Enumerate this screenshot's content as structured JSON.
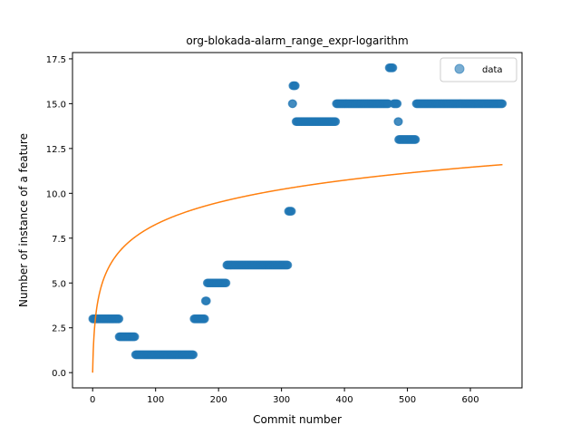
{
  "chart_data": {
    "type": "scatter",
    "title": "org-blokada-alarm_range_expr-logarithm",
    "xlabel": "Commit number",
    "ylabel": "Number of instance of a feature",
    "xlim": [
      -32,
      682
    ],
    "ylim": [
      -0.85,
      17.85
    ],
    "x_ticks": [
      0,
      100,
      200,
      300,
      400,
      500,
      600
    ],
    "y_ticks": [
      0.0,
      2.5,
      5.0,
      7.5,
      10.0,
      12.5,
      15.0,
      17.5
    ],
    "x_tick_labels": [
      "0",
      "100",
      "200",
      "300",
      "400",
      "500",
      "600"
    ],
    "y_tick_labels": [
      "0.0",
      "2.5",
      "5.0",
      "7.5",
      "10.0",
      "12.5",
      "15.0",
      "17.5"
    ],
    "grid": false,
    "legend_position": "top-right",
    "series": [
      {
        "name": "data",
        "kind": "scatter",
        "color": "#1f77b4",
        "segments": [
          {
            "x_start": 0,
            "x_end": 42,
            "y": 3
          },
          {
            "x_start": 42,
            "x_end": 67,
            "y": 2
          },
          {
            "x_start": 68,
            "x_end": 160,
            "y": 1
          },
          {
            "x_start": 161,
            "x_end": 178,
            "y": 3
          },
          {
            "x_start": 179,
            "x_end": 181,
            "y": 4
          },
          {
            "x_start": 182,
            "x_end": 212,
            "y": 5
          },
          {
            "x_start": 213,
            "x_end": 310,
            "y": 6
          },
          {
            "x_start": 311,
            "x_end": 316,
            "y": 9
          },
          {
            "x_start": 317,
            "x_end": 318,
            "y": 15
          },
          {
            "x_start": 318,
            "x_end": 322,
            "y": 16
          },
          {
            "x_start": 323,
            "x_end": 386,
            "y": 14
          },
          {
            "x_start": 387,
            "x_end": 470,
            "y": 15
          },
          {
            "x_start": 471,
            "x_end": 477,
            "y": 17
          },
          {
            "x_start": 478,
            "x_end": 484,
            "y": 15
          },
          {
            "x_start": 485,
            "x_end": 486,
            "y": 14
          },
          {
            "x_start": 486,
            "x_end": 513,
            "y": 13
          },
          {
            "x_start": 514,
            "x_end": 651,
            "y": 15
          }
        ]
      },
      {
        "kind": "line",
        "color": "#ff7f0e",
        "function": "logarithm",
        "x_range": [
          0,
          651
        ],
        "samples": [
          {
            "x": 0,
            "y": 0.0
          },
          {
            "x": 5,
            "y": 3.1
          },
          {
            "x": 20,
            "y": 5.2
          },
          {
            "x": 50,
            "y": 6.8
          },
          {
            "x": 100,
            "y": 8.0
          },
          {
            "x": 200,
            "y": 9.4
          },
          {
            "x": 300,
            "y": 10.2
          },
          {
            "x": 400,
            "y": 10.8
          },
          {
            "x": 500,
            "y": 11.2
          },
          {
            "x": 651,
            "y": 11.6
          }
        ]
      }
    ]
  }
}
